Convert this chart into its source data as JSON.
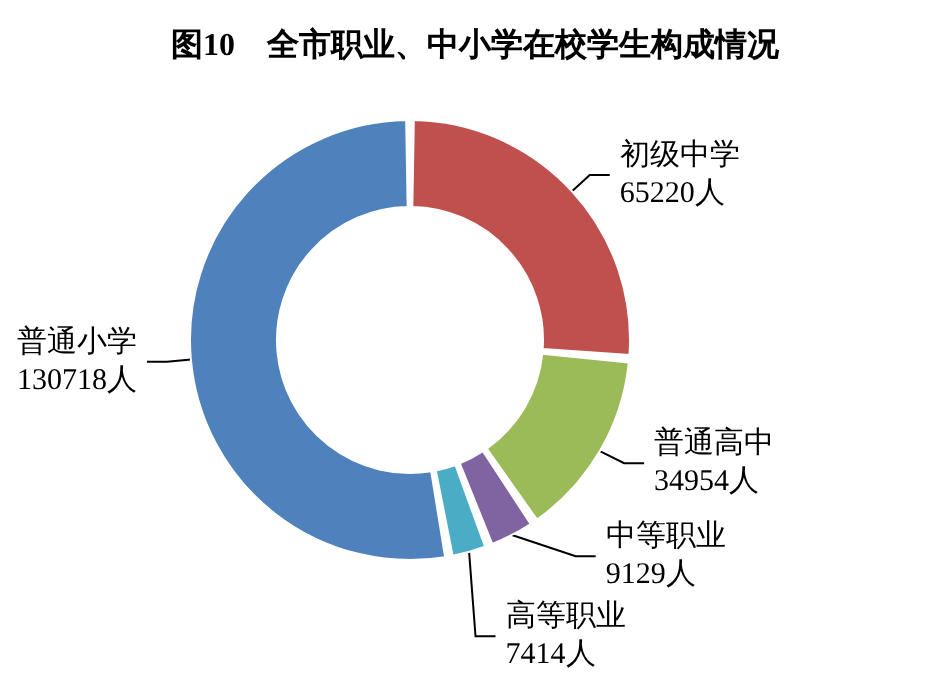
{
  "chart_data": {
    "type": "donut",
    "title": "图10　全市职业、中小学在校学生构成情况",
    "categories": [
      "初级中学",
      "普通高中",
      "中等职业",
      "高等职业",
      "普通小学"
    ],
    "values": [
      65220,
      34954,
      9129,
      7414,
      130718
    ],
    "value_labels": [
      "65220人",
      "34954人",
      "9129人",
      "7414人",
      "130718人"
    ],
    "colors": [
      "#c0504d",
      "#9bbb59",
      "#8064a2",
      "#4bacc6",
      "#4f81bd"
    ]
  }
}
